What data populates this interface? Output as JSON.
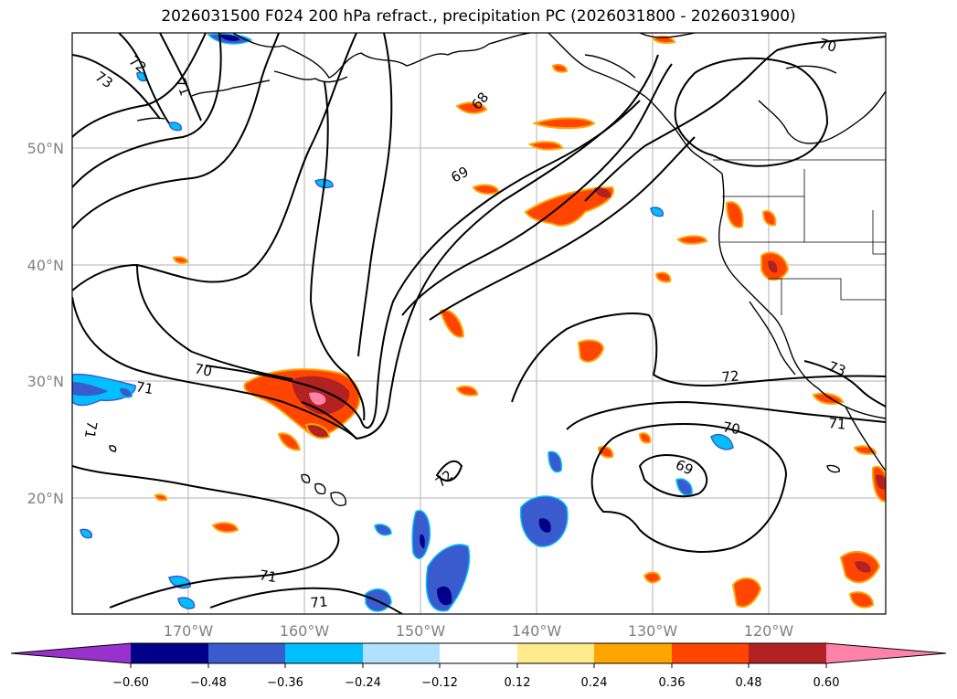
{
  "title": "2026031500 F024 200 hPa refract., precipitation PC (2026031800 - 2026031900)",
  "map": {
    "lon_labels": [
      "170°W",
      "160°W",
      "150°W",
      "140°W",
      "130°W",
      "120°W"
    ],
    "lat_labels": [
      "50°N",
      "40°N",
      "30°N",
      "20°N"
    ],
    "contour_labels": [
      {
        "name": "contour-label-72-nw",
        "text": "72"
      },
      {
        "name": "contour-label-71-nw",
        "text": "71"
      },
      {
        "name": "contour-label-73-nw",
        "text": "73"
      },
      {
        "name": "contour-label-68",
        "text": "68"
      },
      {
        "name": "contour-label-70-ne",
        "text": "70"
      },
      {
        "name": "contour-label-69-n",
        "text": "69"
      },
      {
        "name": "contour-label-70-c",
        "text": "70"
      },
      {
        "name": "contour-label-71-w",
        "text": "71"
      },
      {
        "name": "contour-label-71-w2",
        "text": "71"
      },
      {
        "name": "contour-label-72-c",
        "text": "72"
      },
      {
        "name": "contour-label-72-e",
        "text": "72"
      },
      {
        "name": "contour-label-73-e",
        "text": "73"
      },
      {
        "name": "contour-label-71-e",
        "text": "71"
      },
      {
        "name": "contour-label-70-e",
        "text": "70"
      },
      {
        "name": "contour-label-69-e",
        "text": "69"
      },
      {
        "name": "contour-label-71-s",
        "text": "71"
      },
      {
        "name": "contour-label-71-s2",
        "text": "71"
      }
    ]
  },
  "colorbar": {
    "ticks": [
      "−0.60",
      "−0.48",
      "−0.36",
      "−0.24",
      "−0.12",
      "0.12",
      "0.24",
      "0.36",
      "0.48",
      "0.60"
    ],
    "colors": [
      "#9932cc",
      "#00008b",
      "#3a5bcd",
      "#00bfff",
      "#b0e2ff",
      "#ffffff",
      "#ffeb8c",
      "#ffa500",
      "#ff4500",
      "#b22222",
      "#ff82ab"
    ]
  },
  "colors": {
    "land_outline": "#000000",
    "grid": "#b0b0b0",
    "contour": "#000000"
  }
}
